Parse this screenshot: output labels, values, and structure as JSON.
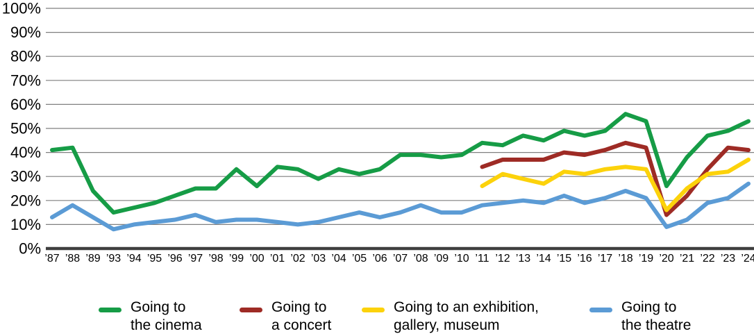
{
  "colors": {
    "background": "#FFFFFF",
    "grid": "#7F7F7F",
    "axis": "#3F3F3F",
    "text": "#000000"
  },
  "legend": {
    "items": [
      {
        "line1": "Going to",
        "line2": "the cinema"
      },
      {
        "line1": "Going to",
        "line2": "a concert"
      },
      {
        "line1": "Going to an exhibition,",
        "line2": "gallery, museum"
      },
      {
        "line1": "Going to",
        "line2": "the theatre"
      }
    ]
  },
  "chart_data": {
    "type": "line",
    "title": "",
    "xlabel": "",
    "ylabel": "",
    "ylim": [
      0,
      100
    ],
    "y_ticks": [
      0,
      10,
      20,
      30,
      40,
      50,
      60,
      70,
      80,
      90,
      100
    ],
    "y_tick_suffix": "%",
    "grid": "horizontal",
    "legend_position": "bottom",
    "x_tick_labels": [
      "’87",
      "’88",
      "’89",
      "’93",
      "’94",
      "’95",
      "’96",
      "’97",
      "’98",
      "’99",
      "’00",
      "’01",
      "’02",
      "’03",
      "’04",
      "’05",
      "’06",
      "’07",
      "’08",
      "’09",
      "’10",
      "’11",
      "’12",
      "’13",
      "’14",
      "’15",
      "’16",
      "’17",
      "’18",
      "’19",
      "’20",
      "’21",
      "’22",
      "’23",
      "’24"
    ],
    "series": [
      {
        "name": "Going to the cinema",
        "color": "#169C46",
        "values": [
          41,
          42,
          24,
          15,
          17,
          19,
          22,
          25,
          25,
          33,
          26,
          34,
          33,
          29,
          33,
          31,
          33,
          39,
          39,
          38,
          39,
          44,
          43,
          47,
          45,
          49,
          47,
          49,
          56,
          53,
          26,
          38,
          47,
          49,
          53
        ]
      },
      {
        "name": "Going to a concert",
        "color": "#9E2B25",
        "values": [
          null,
          null,
          null,
          null,
          null,
          null,
          null,
          null,
          null,
          null,
          null,
          null,
          null,
          null,
          null,
          null,
          null,
          null,
          null,
          null,
          null,
          34,
          37,
          37,
          37,
          40,
          39,
          41,
          44,
          42,
          14,
          22,
          33,
          42,
          41
        ]
      },
      {
        "name": "Going to an exhibition, gallery, museum",
        "color": "#FCD20B",
        "values": [
          null,
          null,
          null,
          null,
          null,
          null,
          null,
          null,
          null,
          null,
          null,
          null,
          null,
          null,
          null,
          null,
          null,
          null,
          null,
          null,
          null,
          26,
          31,
          29,
          27,
          32,
          31,
          33,
          34,
          33,
          16,
          25,
          31,
          32,
          37
        ]
      },
      {
        "name": "Going to the theatre",
        "color": "#5B9BD5",
        "values": [
          13,
          18,
          13,
          8,
          10,
          11,
          12,
          14,
          11,
          12,
          12,
          11,
          10,
          11,
          13,
          15,
          13,
          15,
          18,
          15,
          15,
          18,
          19,
          20,
          19,
          22,
          19,
          21,
          24,
          21,
          9,
          12,
          19,
          21,
          27
        ]
      }
    ]
  }
}
